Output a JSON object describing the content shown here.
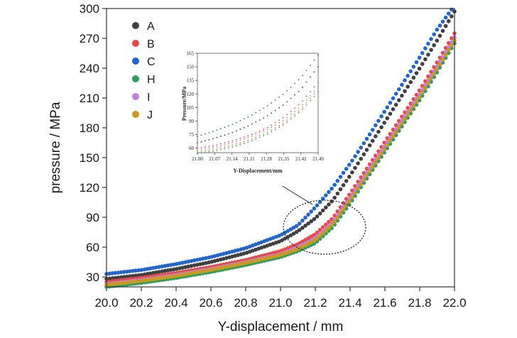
{
  "chart_data": [
    {
      "type": "scatter",
      "title": "",
      "xlabel": "Y-displacement / mm",
      "ylabel": "pressure / MPa",
      "xlim": [
        20.0,
        22.0
      ],
      "ylim": [
        20,
        300
      ],
      "x_ticks": [
        "20.0",
        "20.2",
        "20.4",
        "20.6",
        "20.8",
        "21.0",
        "21.2",
        "21.4",
        "21.6",
        "21.8",
        "22.0"
      ],
      "y_ticks": [
        "30",
        "60",
        "90",
        "120",
        "150",
        "180",
        "210",
        "240",
        "270",
        "300"
      ],
      "x": [
        20.0,
        20.2,
        20.4,
        20.6,
        20.8,
        21.0,
        21.1,
        21.2,
        21.3,
        21.4,
        21.5,
        21.6,
        21.7,
        21.8,
        21.9,
        22.0
      ],
      "series": [
        {
          "name": "A",
          "color": "#404040",
          "values": [
            28,
            32,
            38,
            45,
            54,
            66,
            76,
            89,
            107,
            132,
            159,
            186,
            213,
            240,
            268,
            297
          ]
        },
        {
          "name": "B",
          "color": "#e84848",
          "values": [
            25,
            29,
            34,
            40,
            47,
            56,
            63,
            73,
            89,
            114,
            140,
            166,
            192,
            218,
            246,
            275
          ]
        },
        {
          "name": "C",
          "color": "#2266cc",
          "values": [
            33,
            37,
            43,
            50,
            59,
            72,
            82,
            100,
            120,
            144,
            170,
            197,
            224,
            251,
            279,
            303
          ]
        },
        {
          "name": "H",
          "color": "#2e9e5e",
          "values": [
            20,
            24,
            29,
            35,
            42,
            50,
            56,
            64,
            80,
            104,
            130,
            156,
            182,
            208,
            236,
            265
          ]
        },
        {
          "name": "I",
          "color": "#c27ee0",
          "values": [
            23,
            27,
            32,
            38,
            45,
            53,
            60,
            69,
            85,
            110,
            136,
            162,
            188,
            214,
            242,
            271
          ]
        },
        {
          "name": "J",
          "color": "#c99a1e",
          "values": [
            22,
            26,
            31,
            37,
            44,
            52,
            58,
            67,
            83,
            107,
            133,
            159,
            185,
            211,
            239,
            268
          ]
        }
      ],
      "legend_position": "top-left"
    },
    {
      "type": "scatter",
      "title": "",
      "xlabel": "Y-Displacement/mm",
      "ylabel": "Pressure/MPa",
      "xlim": [
        21.0,
        21.49
      ],
      "ylim": [
        55,
        165
      ],
      "x_ticks": [
        "21.00",
        "21.07",
        "21.14",
        "21.21",
        "21.28",
        "21.35",
        "21.42",
        "21.49"
      ],
      "y_ticks": [
        "60",
        "75",
        "90",
        "105",
        "120",
        "135",
        "150",
        "165"
      ],
      "x": [
        21.0,
        21.07,
        21.14,
        21.21,
        21.28,
        21.35,
        21.42,
        21.49
      ],
      "series": [
        {
          "name": "C",
          "color": "#2266cc",
          "values": [
            73,
            79,
            86,
            95,
            106,
            120,
            138,
            163
          ]
        },
        {
          "name": "A",
          "color": "#404040",
          "values": [
            66,
            71,
            77,
            85,
            95,
            108,
            125,
            150
          ]
        },
        {
          "name": "B",
          "color": "#e84848",
          "values": [
            60,
            63,
            68,
            74,
            82,
            94,
            110,
            133
          ]
        },
        {
          "name": "I",
          "color": "#c27ee0",
          "values": [
            58,
            61,
            66,
            72,
            80,
            91,
            106,
            128
          ]
        },
        {
          "name": "J",
          "color": "#c99a1e",
          "values": [
            56,
            59,
            63,
            69,
            77,
            88,
            103,
            125
          ]
        },
        {
          "name": "H",
          "color": "#2e9e5e",
          "values": [
            54,
            57,
            61,
            67,
            75,
            86,
            101,
            122
          ]
        }
      ],
      "annotation": "dotted ellipse with arrow pointing to inset"
    }
  ]
}
